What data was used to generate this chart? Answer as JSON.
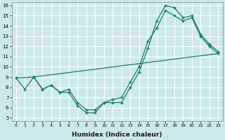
{
  "xlabel": "Humidex (Indice chaleur)",
  "bg_color": "#cce8ea",
  "grid_color": "#ffffff",
  "line_color": "#1a7a6e",
  "xlim": [
    -0.5,
    23.5
  ],
  "ylim": [
    4.7,
    16.3
  ],
  "xticks": [
    0,
    1,
    2,
    3,
    4,
    5,
    6,
    7,
    8,
    9,
    10,
    11,
    12,
    13,
    14,
    15,
    16,
    17,
    18,
    19,
    20,
    21,
    22,
    23
  ],
  "yticks": [
    5,
    6,
    7,
    8,
    9,
    10,
    11,
    12,
    13,
    14,
    15,
    16
  ],
  "line1_x": [
    0,
    1,
    2,
    3,
    4,
    5,
    6,
    7,
    8,
    9,
    10,
    11,
    12,
    13,
    14,
    15,
    16,
    17,
    18,
    19,
    20,
    21,
    22,
    23
  ],
  "line1_y": [
    8.9,
    7.8,
    9.0,
    7.8,
    8.2,
    7.5,
    7.5,
    6.2,
    5.5,
    5.5,
    6.5,
    6.5,
    6.5,
    8.0,
    9.5,
    11.8,
    14.5,
    16.0,
    15.8,
    14.8,
    15.0,
    13.2,
    12.2,
    11.5
  ],
  "line2_x": [
    0,
    2,
    3,
    4,
    5,
    6,
    7,
    8,
    9,
    10,
    11,
    12,
    13,
    14,
    15,
    16,
    17,
    18,
    19,
    20,
    21,
    22,
    23
  ],
  "line2_y": [
    8.9,
    9.0,
    7.8,
    8.2,
    7.5,
    7.8,
    6.5,
    5.8,
    5.8,
    6.5,
    6.8,
    7.0,
    8.5,
    10.0,
    12.5,
    13.8,
    15.5,
    15.0,
    14.5,
    14.8,
    13.0,
    12.0,
    11.3
  ],
  "line3_x": [
    2,
    23
  ],
  "line3_y": [
    9.0,
    11.3
  ]
}
